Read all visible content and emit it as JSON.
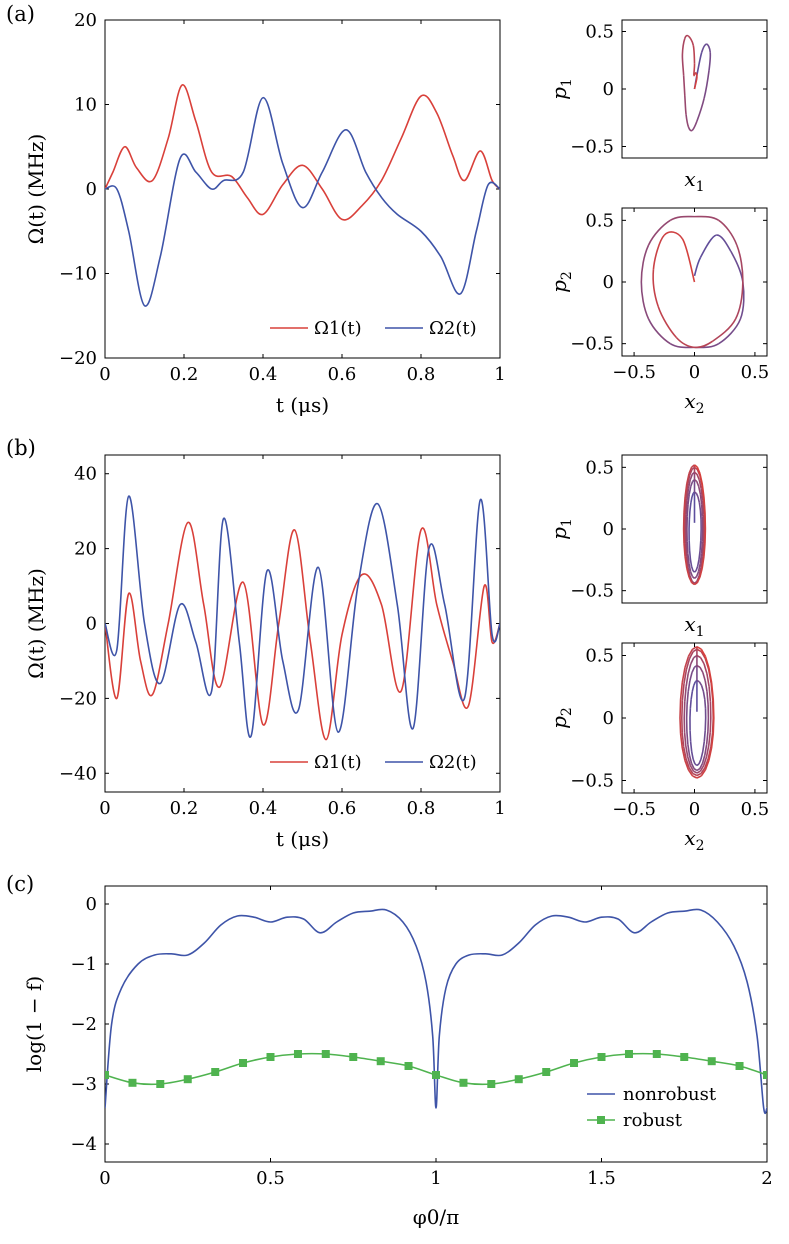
{
  "panel_labels": [
    "(a)",
    "(b)",
    "(c)"
  ],
  "colors": {
    "red": "#d9403a",
    "blue": "#3e54a8",
    "green": "#4fb34f",
    "axis": "#000000"
  },
  "chart_data": [
    {
      "id": "a-pulse",
      "type": "line",
      "panel": "(a)",
      "xlabel": "t (μs)",
      "ylabel": "Ω(t) (MHz)",
      "xlim": [
        0,
        1
      ],
      "ylim": [
        -20,
        20
      ],
      "xticks": [
        0,
        0.2,
        0.4,
        0.6,
        0.8,
        1
      ],
      "yticks": [
        -20,
        -10,
        0,
        10,
        20
      ],
      "grid": false,
      "legend_position": "bottom-right",
      "series": [
        {
          "name": "Ω1(t)",
          "color": "#d9403a",
          "x": [
            0,
            0.02,
            0.05,
            0.08,
            0.12,
            0.16,
            0.195,
            0.23,
            0.27,
            0.32,
            0.36,
            0.4,
            0.45,
            0.5,
            0.55,
            0.6,
            0.65,
            0.7,
            0.75,
            0.8,
            0.84,
            0.88,
            0.91,
            0.95,
            0.98,
            1
          ],
          "y": [
            0,
            2.0,
            5.0,
            2.5,
            1.0,
            6.0,
            12.3,
            8.0,
            2.0,
            1.5,
            -1.0,
            -3.0,
            0.5,
            2.8,
            0,
            -3.6,
            -2.0,
            1.0,
            6.0,
            11.0,
            9.0,
            4.0,
            1.0,
            4.5,
            1.0,
            0
          ]
        },
        {
          "name": "Ω2(t)",
          "color": "#3e54a8",
          "x": [
            0,
            0.03,
            0.06,
            0.1,
            0.14,
            0.19,
            0.23,
            0.27,
            0.3,
            0.35,
            0.4,
            0.45,
            0.5,
            0.55,
            0.61,
            0.66,
            0.7,
            0.74,
            0.8,
            0.85,
            0.9,
            0.94,
            0.97,
            1
          ],
          "y": [
            0,
            0,
            -5.0,
            -13.8,
            -8.0,
            3.6,
            2.0,
            0,
            1.0,
            2.0,
            10.8,
            3.0,
            -2.2,
            2.0,
            7.0,
            2.0,
            -1.0,
            -3.0,
            -5.0,
            -8.0,
            -12.4,
            -5.0,
            0.5,
            0
          ]
        }
      ]
    },
    {
      "id": "a-phase1",
      "type": "line",
      "panel": "(a)",
      "xlabel": "x1",
      "ylabel": "p1",
      "xlim": [
        -0.6,
        0.6
      ],
      "ylim": [
        -0.6,
        0.6
      ],
      "yticks": [
        -0.5,
        0,
        0.5
      ],
      "grid": false,
      "series": [
        {
          "name": "",
          "color_start": "#5c4f9e",
          "color_end": "#d9403a",
          "x": [
            0,
            0.02,
            0.06,
            0.1,
            0.13,
            0.12,
            0.08,
            0.02,
            -0.02,
            -0.05,
            -0.07,
            -0.08,
            -0.09,
            -0.1,
            -0.08,
            -0.05,
            -0.01,
            0,
            -0.005,
            0.01,
            0.02,
            0.0
          ],
          "y": [
            0,
            0.12,
            0.32,
            0.39,
            0.32,
            0.16,
            -0.08,
            -0.28,
            -0.36,
            -0.33,
            -0.22,
            -0.06,
            0.12,
            0.3,
            0.44,
            0.46,
            0.38,
            0.22,
            0.12,
            0.14,
            0.1,
            0
          ]
        }
      ]
    },
    {
      "id": "a-phase2",
      "type": "line",
      "panel": "(a)",
      "xlabel": "x2",
      "ylabel": "p2",
      "xlim": [
        -0.6,
        0.6
      ],
      "ylim": [
        -0.6,
        0.6
      ],
      "xticks": [
        -0.5,
        0,
        0.5
      ],
      "yticks": [
        -0.5,
        0,
        0.5
      ],
      "grid": false,
      "series": [
        {
          "name": "",
          "color_start": "#5c4f9e",
          "color_end": "#d9403a",
          "x": [
            0,
            0.05,
            0.18,
            0.3,
            0.4,
            0.38,
            0.2,
            0,
            -0.2,
            -0.38,
            -0.44,
            -0.38,
            -0.2,
            0,
            0.2,
            0.35,
            0.4,
            0.34,
            0.15,
            0,
            -0.15,
            -0.3,
            -0.34,
            -0.25,
            -0.1,
            0
          ],
          "y": [
            0.05,
            0.2,
            0.38,
            0.25,
            0,
            -0.3,
            -0.5,
            -0.53,
            -0.5,
            -0.3,
            0,
            0.3,
            0.5,
            0.53,
            0.5,
            0.3,
            0,
            -0.3,
            -0.48,
            -0.53,
            -0.45,
            -0.2,
            0.1,
            0.38,
            0.35,
            0
          ]
        }
      ]
    },
    {
      "id": "b-pulse",
      "type": "line",
      "panel": "(b)",
      "xlabel": "t (μs)",
      "ylabel": "Ω(t) (MHz)",
      "xlim": [
        0,
        1
      ],
      "ylim": [
        -45,
        45
      ],
      "xticks": [
        0,
        0.2,
        0.4,
        0.6,
        0.8,
        1
      ],
      "yticks": [
        -40,
        -20,
        0,
        20,
        40
      ],
      "grid": false,
      "legend_position": "bottom-right",
      "series": [
        {
          "name": "Ω1(t)",
          "color": "#d9403a",
          "x": [
            0,
            0.03,
            0.06,
            0.09,
            0.12,
            0.16,
            0.21,
            0.25,
            0.29,
            0.35,
            0.4,
            0.44,
            0.48,
            0.52,
            0.56,
            0.6,
            0.65,
            0.7,
            0.75,
            0.8,
            0.84,
            0.88,
            0.92,
            0.96,
            0.98,
            1
          ],
          "y": [
            0,
            -20.0,
            8.0,
            -10.0,
            -19.0,
            0,
            27.0,
            5.0,
            -17.0,
            11.0,
            -27.0,
            0,
            25.0,
            -5.0,
            -31.0,
            -3.0,
            13.0,
            5.0,
            -18.0,
            25.0,
            5.0,
            -10.0,
            -22.0,
            10.0,
            -5.0,
            0
          ]
        },
        {
          "name": "Ω2(t)",
          "color": "#3e54a8",
          "x": [
            0,
            0.03,
            0.06,
            0.1,
            0.14,
            0.19,
            0.23,
            0.27,
            0.3,
            0.34,
            0.37,
            0.41,
            0.45,
            0.49,
            0.54,
            0.59,
            0.64,
            0.69,
            0.74,
            0.78,
            0.82,
            0.86,
            0.91,
            0.95,
            0.98,
            1
          ],
          "y": [
            0,
            -7.0,
            34.0,
            0,
            -16.0,
            5.0,
            -5.0,
            -18.0,
            28.0,
            -5.0,
            -30.0,
            14.0,
            -10.0,
            -23.0,
            15.0,
            -29.0,
            10.0,
            32.0,
            5.0,
            -28.0,
            20.0,
            5.0,
            -20.0,
            33.0,
            -3.0,
            0
          ]
        }
      ]
    },
    {
      "id": "b-phase1",
      "type": "line",
      "panel": "(b)",
      "xlabel": "x1",
      "ylabel": "p1",
      "xlim": [
        -0.6,
        0.6
      ],
      "ylim": [
        -0.6,
        0.6
      ],
      "yticks": [
        -0.5,
        0,
        0.5
      ],
      "grid": false,
      "series": [
        {
          "name": "",
          "color_start": "#5c4f9e",
          "color_end": "#d9403a",
          "spiral": {
            "loops": 5,
            "rx": [
              0.04,
              0.06,
              0.07,
              0.08,
              0.09
            ],
            "ry_top": [
              0.3,
              0.4,
              0.46,
              0.5,
              0.52
            ],
            "ry_bottom": [
              -0.35,
              -0.4,
              -0.44,
              -0.45,
              -0.45
            ],
            "cx": 0
          }
        }
      ]
    },
    {
      "id": "b-phase2",
      "type": "line",
      "panel": "(b)",
      "xlabel": "x2",
      "ylabel": "p2",
      "xlim": [
        -0.6,
        0.6
      ],
      "ylim": [
        -0.6,
        0.6
      ],
      "xticks": [
        -0.5,
        0,
        0.5
      ],
      "yticks": [
        -0.5,
        0,
        0.5
      ],
      "grid": false,
      "series": [
        {
          "name": "",
          "color_start": "#5c4f9e",
          "color_end": "#d9403a",
          "spiral": {
            "loops": 5,
            "rx": [
              0.05,
              0.08,
              0.1,
              0.12,
              0.14
            ],
            "ry_top": [
              0.3,
              0.42,
              0.5,
              0.55,
              0.57
            ],
            "ry_bottom": [
              -0.38,
              -0.42,
              -0.44,
              -0.46,
              -0.48
            ],
            "cx": 0.02
          }
        }
      ]
    },
    {
      "id": "c-fidelity",
      "type": "line",
      "panel": "(c)",
      "xlabel": "φ0/π",
      "ylabel": "log(1 − f)",
      "xlim": [
        0,
        2
      ],
      "ylim": [
        -4.3,
        0.3
      ],
      "xticks": [
        0,
        0.5,
        1,
        1.5,
        2
      ],
      "yticks": [
        -4,
        -3,
        -2,
        -1,
        0
      ],
      "grid": false,
      "legend_position": "bottom-right",
      "series": [
        {
          "name": "nonrobust",
          "color": "#3e54a8",
          "x": [
            0,
            0.02,
            0.05,
            0.1,
            0.15,
            0.2,
            0.25,
            0.3,
            0.35,
            0.4,
            0.45,
            0.5,
            0.55,
            0.6,
            0.65,
            0.7,
            0.75,
            0.8,
            0.85,
            0.9,
            0.94,
            0.97,
            0.99,
            1.0,
            1.01,
            1.03,
            1.06,
            1.1,
            1.15,
            1.2,
            1.25,
            1.3,
            1.35,
            1.4,
            1.45,
            1.5,
            1.55,
            1.6,
            1.65,
            1.7,
            1.75,
            1.8,
            1.85,
            1.9,
            1.94,
            1.97,
            1.99,
            2.0
          ],
          "y": [
            -3.4,
            -2.0,
            -1.4,
            -1.0,
            -0.85,
            -0.83,
            -0.85,
            -0.65,
            -0.35,
            -0.2,
            -0.22,
            -0.3,
            -0.22,
            -0.25,
            -0.48,
            -0.3,
            -0.15,
            -0.12,
            -0.1,
            -0.3,
            -0.7,
            -1.3,
            -2.2,
            -3.4,
            -2.2,
            -1.4,
            -1.0,
            -0.85,
            -0.83,
            -0.85,
            -0.65,
            -0.35,
            -0.2,
            -0.22,
            -0.3,
            -0.22,
            -0.25,
            -0.48,
            -0.3,
            -0.15,
            -0.12,
            -0.1,
            -0.3,
            -0.7,
            -1.3,
            -2.2,
            -3.4,
            -3.4
          ]
        },
        {
          "name": "robust",
          "color": "#4fb34f",
          "x": [
            0,
            0.083,
            0.167,
            0.25,
            0.333,
            0.417,
            0.5,
            0.583,
            0.667,
            0.75,
            0.833,
            0.917,
            1.0,
            1.083,
            1.167,
            1.25,
            1.333,
            1.417,
            1.5,
            1.583,
            1.667,
            1.75,
            1.833,
            1.917,
            2.0
          ],
          "y": [
            -2.85,
            -2.98,
            -3.0,
            -2.92,
            -2.8,
            -2.65,
            -2.55,
            -2.5,
            -2.5,
            -2.55,
            -2.62,
            -2.7,
            -2.85,
            -2.98,
            -3.0,
            -2.92,
            -2.8,
            -2.65,
            -2.55,
            -2.5,
            -2.5,
            -2.55,
            -2.62,
            -2.7,
            -2.85
          ]
        }
      ]
    }
  ]
}
